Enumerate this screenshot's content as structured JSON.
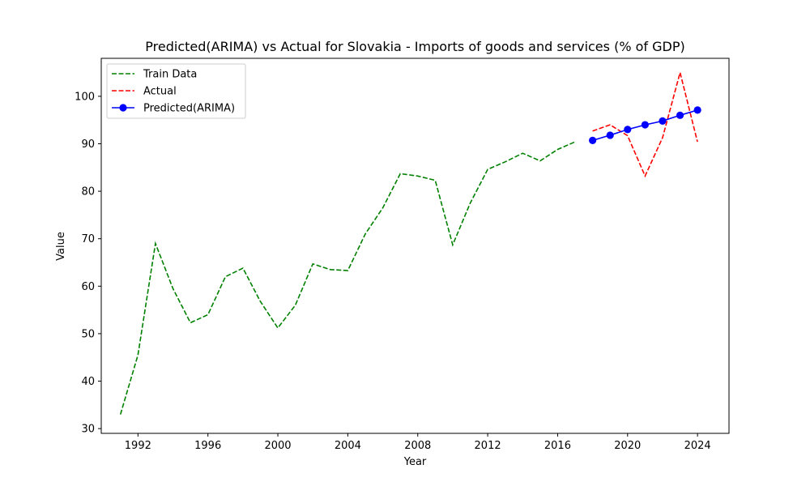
{
  "chart_data": {
    "type": "line",
    "title": "Predicted(ARIMA) vs Actual for Slovakia - Imports of goods and services (% of GDP)",
    "xlabel": "Year",
    "ylabel": "Value",
    "xlim": [
      1989.9,
      2025.8
    ],
    "ylim": [
      29.0,
      108.0
    ],
    "xticks": [
      1992,
      1996,
      2000,
      2004,
      2008,
      2012,
      2016,
      2020,
      2024
    ],
    "yticks": [
      30,
      40,
      50,
      60,
      70,
      80,
      90,
      100
    ],
    "grid": false,
    "legend_position": "top-left",
    "series": [
      {
        "name": "Train Data",
        "style": "dashed",
        "color": "#008000",
        "markers": false,
        "x": [
          1991,
          1992,
          1993,
          1994,
          1995,
          1996,
          1997,
          1998,
          1999,
          2000,
          2001,
          2002,
          2003,
          2004,
          2005,
          2006,
          2007,
          2008,
          2009,
          2010,
          2011,
          2012,
          2013,
          2014,
          2015,
          2016,
          2017
        ],
        "y": [
          33.0,
          45.5,
          69.0,
          59.5,
          52.3,
          54.0,
          62.0,
          63.8,
          56.8,
          51.2,
          56.0,
          64.7,
          63.5,
          63.3,
          71.0,
          76.5,
          83.7,
          83.2,
          82.3,
          68.7,
          77.5,
          84.6,
          86.2,
          88.0,
          86.4,
          88.8,
          90.4
        ]
      },
      {
        "name": "Actual",
        "style": "dashed",
        "color": "#ff0000",
        "markers": false,
        "x": [
          2018,
          2019,
          2020,
          2021,
          2022,
          2023,
          2024
        ],
        "y": [
          92.7,
          94.0,
          91.7,
          83.2,
          91.3,
          105.0,
          90.4
        ]
      },
      {
        "name": "Predicted(ARIMA)",
        "style": "solid",
        "color": "#0000ff",
        "markers": true,
        "x": [
          2018,
          2019,
          2020,
          2021,
          2022,
          2023,
          2024
        ],
        "y": [
          90.7,
          91.8,
          93.0,
          94.0,
          94.8,
          96.0,
          97.1
        ]
      }
    ]
  }
}
